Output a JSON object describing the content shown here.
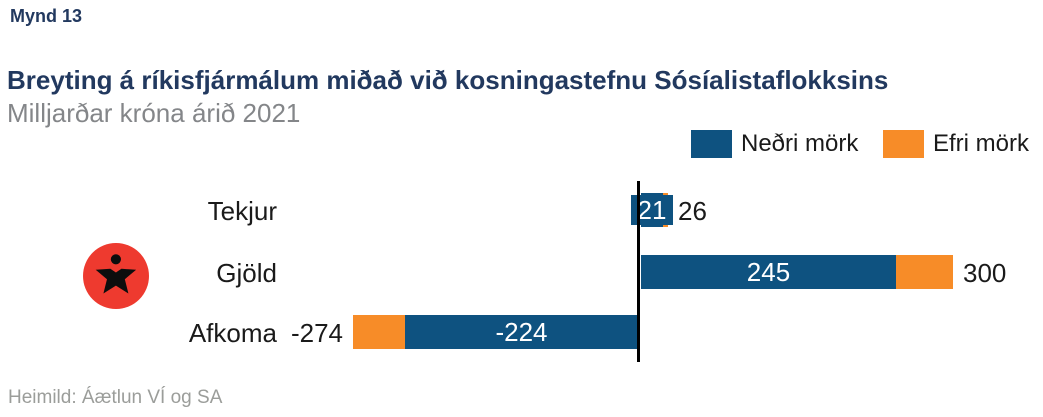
{
  "figure_label": "Mynd 13",
  "title": "Breyting á ríkisfjármálum miðað við kosningastefnu Sósíalistaflokksins",
  "subtitle": "Milljarðar króna árið 2021",
  "source": "Heimild: Áætlun VÍ og SA",
  "colors": {
    "lower_bound": "#0e5280",
    "upper_bound": "#f78c28",
    "title_navy": "#22395f",
    "subtitle_gray": "#848689",
    "source_gray": "#9b9d9a",
    "axis_black": "#000000",
    "logo_red": "#ee3a2f",
    "logo_figure_black": "#0d0d0d"
  },
  "legend": {
    "items": [
      {
        "label": "Neðri mörk",
        "color": "#0e5280"
      },
      {
        "label": "Efri mörk",
        "color": "#f78c28"
      }
    ]
  },
  "logo": {
    "name": "socialist-party-star-person-logo"
  },
  "chart_data": {
    "type": "bar",
    "orientation": "horizontal",
    "title": "Breyting á ríkisfjármálum miðað við kosningastefnu Sósíalistaflokksins",
    "subtitle_unit": "Milljarðar króna árið 2021",
    "categories": [
      "Tekjur",
      "Gjöld",
      "Afkoma"
    ],
    "series": [
      {
        "name": "Neðri mörk",
        "color": "#0e5280",
        "values": [
          21,
          245,
          -224
        ]
      },
      {
        "name": "Efri mörk",
        "color": "#f78c28",
        "values": [
          26,
          300,
          -274
        ]
      }
    ],
    "data_labels": {
      "lower_inside": [
        "21",
        "245",
        "-224"
      ],
      "upper_outside": [
        "26",
        "300",
        "-274"
      ]
    },
    "axis": {
      "zero_line": true,
      "gridlines": false
    },
    "legend_position": "top-right",
    "xlim": [
      -290,
      390
    ]
  }
}
